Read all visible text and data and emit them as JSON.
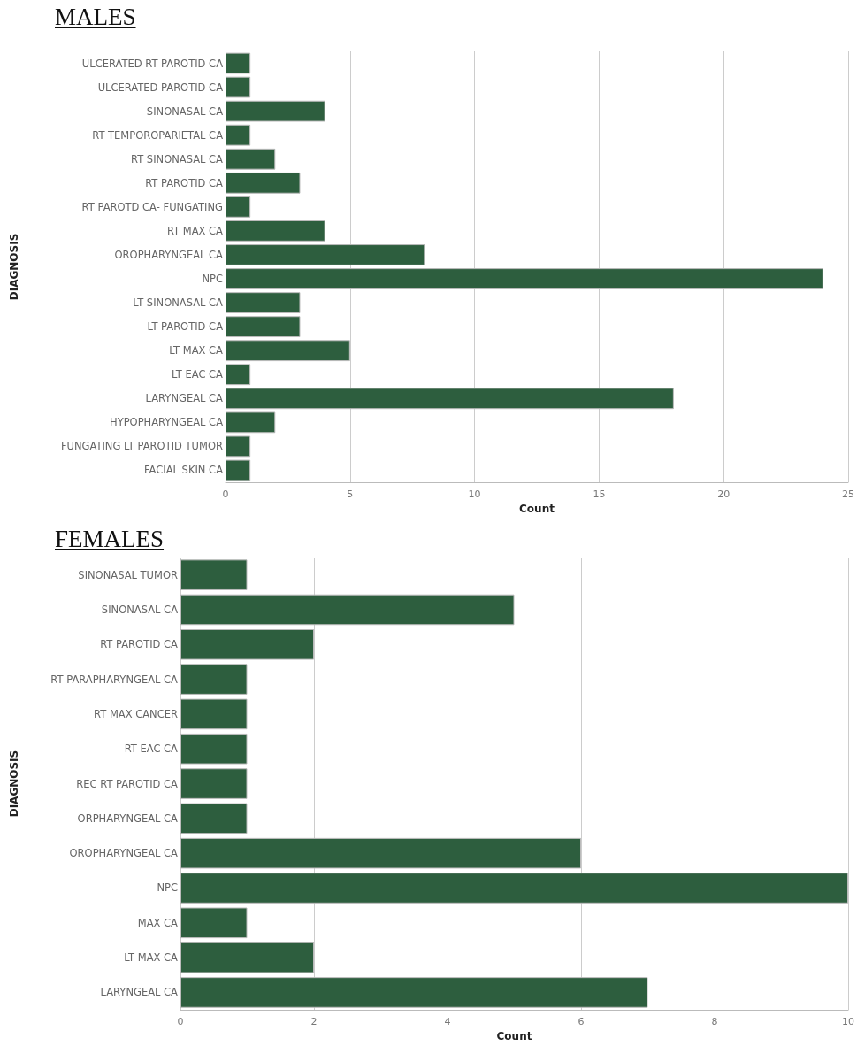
{
  "chart_data": [
    {
      "type": "bar",
      "title": "MALES",
      "orientation": "horizontal",
      "xlabel": "Count",
      "ylabel": "DIAGNOSIS",
      "grid": "x",
      "color": "#2d5e3e",
      "categories": [
        "ULCERATED RT PAROTID CA",
        "ULCERATED PAROTID CA",
        "SINONASAL CA",
        "RT TEMPOROPARIETAL CA",
        "RT SINONASAL CA",
        "RT PAROTID CA",
        "RT PAROTD CA- FUNGATING",
        "RT MAX CA",
        "OROPHARYNGEAL CA",
        "NPC",
        "LT SINONASAL CA",
        "LT PAROTID CA",
        "LT MAX CA",
        "LT EAC CA",
        "LARYNGEAL CA",
        "HYPOPHARYNGEAL CA",
        "FUNGATING LT PAROTID TUMOR",
        "FACIAL SKIN CA"
      ],
      "values": [
        1,
        1,
        4,
        1,
        2,
        3,
        1,
        4,
        8,
        24,
        3,
        3,
        5,
        1,
        18,
        2,
        1,
        1
      ],
      "xlim": [
        0,
        25
      ],
      "xticks": [
        0,
        5,
        10,
        15,
        20,
        25
      ]
    },
    {
      "type": "bar",
      "title": "FEMALES",
      "orientation": "horizontal",
      "xlabel": "Count",
      "ylabel": "DIAGNOSIS",
      "grid": "x",
      "color": "#2d5e3e",
      "categories": [
        "SINONASAL TUMOR",
        "SINONASAL CA",
        "RT PAROTID CA",
        "RT PARAPHARYNGEAL CA",
        "RT MAX CANCER",
        "RT EAC CA",
        "REC RT PAROTID CA",
        "ORPHARYNGEAL CA",
        "OROPHARYNGEAL CA",
        "NPC",
        "MAX CA",
        "LT MAX CA",
        "LARYNGEAL CA"
      ],
      "values": [
        1,
        5,
        2,
        1,
        1,
        1,
        1,
        1,
        6,
        10,
        1,
        2,
        7
      ],
      "xlim": [
        0,
        10
      ],
      "xticks": [
        0,
        2,
        4,
        6,
        8,
        10
      ]
    }
  ]
}
